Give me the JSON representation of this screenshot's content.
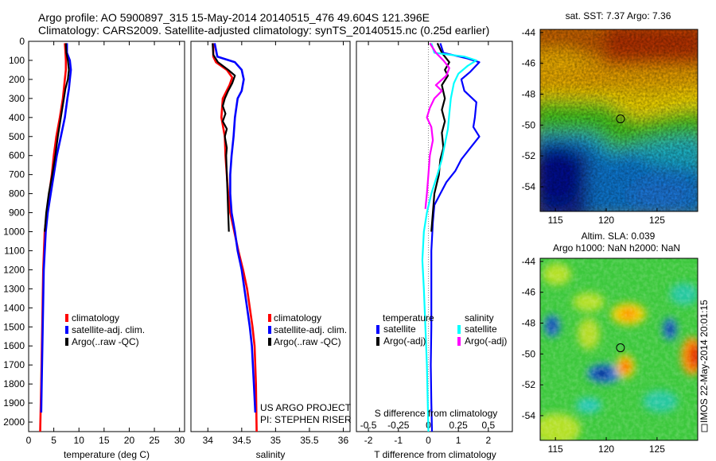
{
  "header": {
    "line1": "Argo profile: AO 5900897_315 15-May-2014 20140515_476 49.604S 121.396E",
    "line2": "Climatology: CARS2009. Satellite-adjusted climatology: synTS_20140515.nc (0.25d earlier)"
  },
  "colors": {
    "red": "#ff0000",
    "blue": "#0000ff",
    "black": "#000000",
    "cyan": "#00ffff",
    "magenta": "#ff00ff",
    "dotted": "#888888",
    "marker": "#000000"
  },
  "chart_data": [
    {
      "type": "line",
      "ylim": [
        2050,
        0
      ],
      "yticks": [
        0,
        100,
        200,
        300,
        400,
        500,
        600,
        700,
        800,
        900,
        1000,
        1100,
        1200,
        1300,
        1400,
        1500,
        1600,
        1700,
        1800,
        1900,
        2000
      ],
      "xlim": [
        0,
        31
      ],
      "xticks": [
        0,
        5,
        10,
        15,
        20,
        25,
        30
      ],
      "xlabel": "temperature (deg C)",
      "ylabel": "",
      "legend": [
        "climatology",
        "satellite-adj. clim.",
        "Argo(..raw -QC)"
      ],
      "legend_position": "bottom-right",
      "series": [
        {
          "name": "climatology",
          "color": "red",
          "width": 2.6,
          "points": [
            [
              7.2,
              10
            ],
            [
              7.3,
              50
            ],
            [
              7.4,
              100
            ],
            [
              7.4,
              150
            ],
            [
              7.2,
              200
            ],
            [
              7.0,
              250
            ],
            [
              6.8,
              300
            ],
            [
              6.2,
              400
            ],
            [
              5.5,
              500
            ],
            [
              5.0,
              600
            ],
            [
              4.6,
              700
            ],
            [
              4.1,
              800
            ],
            [
              3.6,
              900
            ],
            [
              3.2,
              1000
            ],
            [
              2.9,
              1200
            ],
            [
              2.7,
              1500
            ],
            [
              2.5,
              1800
            ],
            [
              2.3,
              2050
            ]
          ]
        },
        {
          "name": "satellite-adj. clim.",
          "color": "blue",
          "width": 2.6,
          "points": [
            [
              7.6,
              10
            ],
            [
              7.6,
              60
            ],
            [
              8.2,
              100
            ],
            [
              8.4,
              150
            ],
            [
              8.2,
              200
            ],
            [
              8.0,
              250
            ],
            [
              7.7,
              300
            ],
            [
              7.2,
              400
            ],
            [
              6.4,
              500
            ],
            [
              5.6,
              600
            ],
            [
              5.0,
              700
            ],
            [
              4.4,
              800
            ],
            [
              3.8,
              900
            ],
            [
              3.4,
              1000
            ],
            [
              3.0,
              1200
            ],
            [
              2.8,
              1500
            ],
            [
              2.6,
              1800
            ],
            [
              2.5,
              1950
            ]
          ]
        },
        {
          "name": "Argo(..raw -QC)",
          "color": "black",
          "width": 2.2,
          "points": [
            [
              7.4,
              10
            ],
            [
              7.5,
              60
            ],
            [
              7.8,
              100
            ],
            [
              8.0,
              150
            ],
            [
              7.8,
              200
            ],
            [
              7.3,
              250
            ],
            [
              7.0,
              300
            ],
            [
              6.4,
              400
            ],
            [
              5.8,
              500
            ],
            [
              5.3,
              600
            ],
            [
              4.7,
              700
            ],
            [
              4.0,
              800
            ],
            [
              3.5,
              900
            ],
            [
              3.2,
              1000
            ]
          ]
        }
      ]
    },
    {
      "type": "line",
      "ylim": [
        2050,
        0
      ],
      "xlim": [
        33.75,
        36.1
      ],
      "xticks": [
        34,
        34.5,
        35,
        35.5,
        36
      ],
      "xlabel": "salinity",
      "legend": [
        "climatology",
        "satellite-adj. clim.",
        "Argo(..raw -QC)"
      ],
      "legend_position": "bottom-right",
      "annotations": [
        "US ARGO PROJECT",
        "PI: STEPHEN RISER"
      ],
      "series": [
        {
          "name": "climatology",
          "color": "red",
          "width": 2.6,
          "points": [
            [
              34.08,
              10
            ],
            [
              34.08,
              80
            ],
            [
              34.12,
              110
            ],
            [
              34.28,
              150
            ],
            [
              34.36,
              190
            ],
            [
              34.32,
              230
            ],
            [
              34.22,
              300
            ],
            [
              34.2,
              400
            ],
            [
              34.25,
              500
            ],
            [
              34.26,
              600
            ],
            [
              34.28,
              700
            ],
            [
              34.3,
              800
            ],
            [
              34.33,
              900
            ],
            [
              34.39,
              1000
            ],
            [
              34.45,
              1100
            ],
            [
              34.52,
              1200
            ],
            [
              34.58,
              1300
            ],
            [
              34.62,
              1400
            ],
            [
              34.66,
              1500
            ],
            [
              34.69,
              1600
            ],
            [
              34.71,
              1800
            ],
            [
              34.72,
              2050
            ]
          ]
        },
        {
          "name": "satellite-adj. clim.",
          "color": "blue",
          "width": 2.6,
          "points": [
            [
              34.1,
              10
            ],
            [
              34.14,
              80
            ],
            [
              34.4,
              110
            ],
            [
              34.5,
              150
            ],
            [
              34.53,
              200
            ],
            [
              34.5,
              260
            ],
            [
              34.44,
              300
            ],
            [
              34.4,
              400
            ],
            [
              34.38,
              500
            ],
            [
              34.35,
              600
            ],
            [
              34.33,
              700
            ],
            [
              34.33,
              800
            ],
            [
              34.35,
              900
            ],
            [
              34.4,
              1000
            ],
            [
              34.44,
              1100
            ],
            [
              34.5,
              1200
            ],
            [
              34.54,
              1300
            ],
            [
              34.58,
              1400
            ],
            [
              34.62,
              1500
            ],
            [
              34.65,
              1600
            ],
            [
              34.68,
              1800
            ],
            [
              34.7,
              1950
            ]
          ]
        },
        {
          "name": "Argo(..raw -QC)",
          "color": "black",
          "width": 2.2,
          "points": [
            [
              34.07,
              10
            ],
            [
              34.08,
              70
            ],
            [
              34.15,
              110
            ],
            [
              34.3,
              150
            ],
            [
              34.4,
              180
            ],
            [
              34.36,
              220
            ],
            [
              34.3,
              260
            ],
            [
              34.25,
              300
            ],
            [
              34.22,
              340
            ],
            [
              34.26,
              380
            ],
            [
              34.22,
              420
            ],
            [
              34.28,
              460
            ],
            [
              34.25,
              500
            ],
            [
              34.28,
              560
            ],
            [
              34.27,
              600
            ],
            [
              34.28,
              700
            ],
            [
              34.29,
              800
            ],
            [
              34.3,
              900
            ],
            [
              34.31,
              1000
            ]
          ]
        }
      ]
    },
    {
      "type": "line",
      "ylim": [
        2050,
        0
      ],
      "xlim": [
        -2.4,
        2.8
      ],
      "xticks": [
        -2,
        -1,
        0,
        1,
        2
      ],
      "xlabel": "T difference from climatology",
      "top_xticks": [
        -0.5,
        -0.25,
        0,
        0.25,
        0.5
      ],
      "top_xlabel": "S difference from climatology",
      "legend_titles": [
        "temperature",
        "salinity"
      ],
      "legend": [
        "satellite",
        "Argo(-adj)",
        "satellite",
        "Argo(-adj)"
      ],
      "legend_position": "bottom",
      "series": [
        {
          "name": "satellite",
          "color": "blue",
          "width": 2.2,
          "points": [
            [
              0.4,
              10
            ],
            [
              0.5,
              60
            ],
            [
              1.3,
              90
            ],
            [
              1.7,
              110
            ],
            [
              1.4,
              160
            ],
            [
              1.1,
              200
            ],
            [
              1.2,
              260
            ],
            [
              1.6,
              320
            ],
            [
              1.55,
              400
            ],
            [
              1.5,
              450
            ],
            [
              1.7,
              500
            ],
            [
              1.4,
              560
            ],
            [
              1.1,
              620
            ],
            [
              0.9,
              680
            ],
            [
              0.6,
              740
            ],
            [
              0.4,
              800
            ],
            [
              0.2,
              860
            ],
            [
              0.15,
              950
            ],
            [
              0.1,
              1100
            ],
            [
              0.1,
              1300
            ],
            [
              0.1,
              1500
            ],
            [
              0.08,
              1700
            ],
            [
              0.1,
              1900
            ],
            [
              0.12,
              2050
            ]
          ]
        },
        {
          "name": "Argo(-adj)",
          "color": "black",
          "width": 2.2,
          "points": [
            [
              0.3,
              10
            ],
            [
              0.45,
              60
            ],
            [
              0.7,
              110
            ],
            [
              0.55,
              150
            ],
            [
              0.65,
              180
            ],
            [
              0.45,
              230
            ],
            [
              0.55,
              300
            ],
            [
              0.45,
              360
            ],
            [
              0.55,
              420
            ],
            [
              0.45,
              480
            ],
            [
              0.5,
              560
            ],
            [
              0.4,
              620
            ],
            [
              0.35,
              700
            ],
            [
              0.2,
              800
            ],
            [
              0.15,
              900
            ],
            [
              0.1,
              1000
            ]
          ]
        },
        {
          "name": "satellite",
          "color": "cyan",
          "width": 2.2,
          "points": [
            [
              0.1,
              10
            ],
            [
              0.2,
              60
            ],
            [
              1.2,
              80
            ],
            [
              1.6,
              100
            ],
            [
              1.3,
              130
            ],
            [
              1.0,
              170
            ],
            [
              0.85,
              220
            ],
            [
              0.75,
              300
            ],
            [
              0.7,
              380
            ],
            [
              0.65,
              460
            ],
            [
              0.55,
              540
            ],
            [
              0.45,
              620
            ],
            [
              0.3,
              700
            ],
            [
              0.1,
              800
            ],
            [
              -0.05,
              900
            ],
            [
              -0.15,
              1000
            ],
            [
              -0.2,
              1150
            ],
            [
              -0.15,
              1300
            ],
            [
              -0.1,
              1500
            ],
            [
              -0.05,
              1700
            ],
            [
              -0.02,
              1900
            ],
            [
              0.0,
              2050
            ]
          ]
        },
        {
          "name": "Argo(-adj)",
          "color": "magenta",
          "width": 2.2,
          "points": [
            [
              0.05,
              10
            ],
            [
              0.25,
              60
            ],
            [
              0.5,
              100
            ],
            [
              0.7,
              140
            ],
            [
              0.6,
              180
            ],
            [
              0.25,
              230
            ],
            [
              0.45,
              260
            ],
            [
              0.2,
              300
            ],
            [
              0.05,
              350
            ],
            [
              -0.05,
              400
            ],
            [
              0.1,
              450
            ],
            [
              0.15,
              520
            ],
            [
              0.05,
              600
            ],
            [
              0.0,
              700
            ],
            [
              -0.05,
              800
            ],
            [
              -0.1,
              880
            ]
          ]
        }
      ]
    },
    {
      "type": "heatmap",
      "title": "sat. SST: 7.37 Argo: 7.36",
      "xlim": [
        113.5,
        129
      ],
      "ylim": [
        -55.6,
        -43.8
      ],
      "xticks": [
        115,
        120,
        125
      ],
      "yticks": [
        -44,
        -46,
        -48,
        -50,
        -52,
        -54
      ],
      "marker": [
        121.4,
        -49.6
      ]
    },
    {
      "type": "heatmap",
      "title": "Altim. SLA: 0.039",
      "subtitle": "Argo h1000: NaN h2000: NaN",
      "xlim": [
        113.5,
        129
      ],
      "ylim": [
        -55.6,
        -43.8
      ],
      "xticks": [
        115,
        120,
        125
      ],
      "yticks": [
        -44,
        -46,
        -48,
        -50,
        -52,
        -54
      ],
      "marker": [
        121.4,
        -49.6
      ]
    }
  ],
  "footer_stamp": "IMOS 22-May-2014 20:01:15"
}
